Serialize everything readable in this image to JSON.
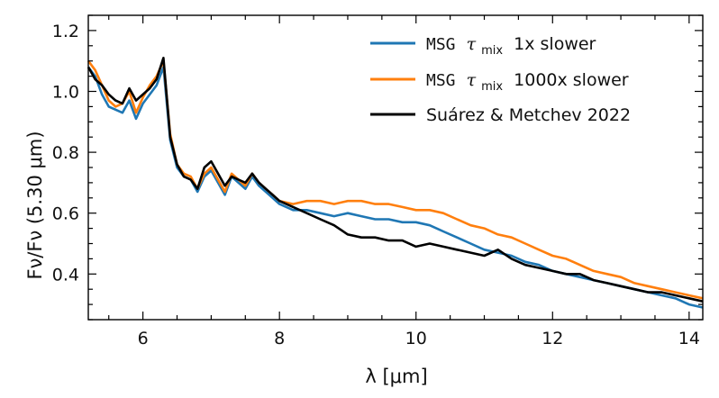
{
  "chart_data": {
    "type": "line",
    "xlabel": "λ [μm]",
    "ylabel": "Fν/Fν (5.30 μm)",
    "xlim": [
      5.2,
      14.2
    ],
    "ylim": [
      0.25,
      1.25
    ],
    "xticks": [
      6,
      8,
      10,
      12,
      14
    ],
    "yticks": [
      0.4,
      0.6,
      0.8,
      1.0,
      1.2
    ],
    "xtick_labels": [
      "6",
      "8",
      "10",
      "12",
      "14"
    ],
    "ytick_labels": [
      "0.4",
      "0.6",
      "0.8",
      "1.0",
      "1.2"
    ],
    "legend_position": "top-right",
    "legend": [
      {
        "prefix": "MSG",
        "symbol": "τ",
        "subscript": "mix",
        "suffix": "1x slower",
        "color": "#1f77b4"
      },
      {
        "prefix": "MSG",
        "symbol": "τ",
        "subscript": "mix",
        "suffix": "1000x slower",
        "color": "#ff7f0e"
      },
      {
        "label": "Suárez & Metchev 2022",
        "color": "#000000"
      }
    ],
    "series": [
      {
        "name": "MSG τmix 1x slower",
        "color": "#1f77b4",
        "x": [
          5.2,
          5.3,
          5.4,
          5.5,
          5.6,
          5.7,
          5.8,
          5.9,
          6.0,
          6.1,
          6.2,
          6.3,
          6.4,
          6.5,
          6.6,
          6.7,
          6.8,
          6.9,
          7.0,
          7.1,
          7.2,
          7.3,
          7.4,
          7.5,
          7.6,
          7.7,
          7.8,
          7.9,
          8.0,
          8.2,
          8.4,
          8.6,
          8.8,
          9.0,
          9.2,
          9.4,
          9.6,
          9.8,
          10.0,
          10.2,
          10.4,
          10.6,
          10.8,
          11.0,
          11.2,
          11.4,
          11.6,
          11.8,
          12.0,
          12.2,
          12.4,
          12.6,
          12.8,
          13.0,
          13.2,
          13.4,
          13.6,
          13.8,
          14.0,
          14.2
        ],
        "values": [
          1.08,
          1.05,
          0.99,
          0.95,
          0.94,
          0.93,
          0.97,
          0.91,
          0.96,
          0.99,
          1.02,
          1.08,
          0.84,
          0.75,
          0.72,
          0.71,
          0.67,
          0.72,
          0.74,
          0.7,
          0.66,
          0.72,
          0.7,
          0.68,
          0.72,
          0.69,
          0.67,
          0.65,
          0.63,
          0.61,
          0.61,
          0.6,
          0.59,
          0.6,
          0.59,
          0.58,
          0.58,
          0.57,
          0.57,
          0.56,
          0.54,
          0.52,
          0.5,
          0.48,
          0.47,
          0.46,
          0.44,
          0.43,
          0.41,
          0.4,
          0.39,
          0.38,
          0.37,
          0.36,
          0.35,
          0.34,
          0.33,
          0.32,
          0.3,
          0.29
        ]
      },
      {
        "name": "MSG τmix 1000x slower",
        "color": "#ff7f0e",
        "x": [
          5.2,
          5.3,
          5.4,
          5.5,
          5.6,
          5.7,
          5.8,
          5.9,
          6.0,
          6.1,
          6.2,
          6.3,
          6.4,
          6.5,
          6.6,
          6.7,
          6.8,
          6.9,
          7.0,
          7.1,
          7.2,
          7.3,
          7.4,
          7.5,
          7.6,
          7.7,
          7.8,
          7.9,
          8.0,
          8.2,
          8.4,
          8.6,
          8.8,
          9.0,
          9.2,
          9.4,
          9.6,
          9.8,
          10.0,
          10.2,
          10.4,
          10.6,
          10.8,
          11.0,
          11.2,
          11.4,
          11.6,
          11.8,
          12.0,
          12.2,
          12.4,
          12.6,
          12.8,
          13.0,
          13.2,
          13.4,
          13.6,
          13.8,
          14.0,
          14.2
        ],
        "values": [
          1.1,
          1.07,
          1.02,
          0.97,
          0.95,
          0.96,
          1.0,
          0.93,
          0.98,
          1.02,
          1.05,
          1.1,
          0.86,
          0.76,
          0.73,
          0.72,
          0.68,
          0.73,
          0.75,
          0.71,
          0.67,
          0.73,
          0.71,
          0.69,
          0.73,
          0.7,
          0.68,
          0.66,
          0.64,
          0.63,
          0.64,
          0.64,
          0.63,
          0.64,
          0.64,
          0.63,
          0.63,
          0.62,
          0.61,
          0.61,
          0.6,
          0.58,
          0.56,
          0.55,
          0.53,
          0.52,
          0.5,
          0.48,
          0.46,
          0.45,
          0.43,
          0.41,
          0.4,
          0.39,
          0.37,
          0.36,
          0.35,
          0.34,
          0.33,
          0.32
        ]
      },
      {
        "name": "Suárez & Metchev 2022",
        "color": "#000000",
        "x": [
          5.2,
          5.3,
          5.4,
          5.5,
          5.6,
          5.7,
          5.8,
          5.9,
          6.0,
          6.1,
          6.2,
          6.3,
          6.4,
          6.5,
          6.6,
          6.7,
          6.8,
          6.9,
          7.0,
          7.1,
          7.2,
          7.3,
          7.4,
          7.5,
          7.6,
          7.7,
          7.8,
          7.9,
          8.0,
          8.2,
          8.4,
          8.6,
          8.8,
          9.0,
          9.2,
          9.4,
          9.6,
          9.8,
          10.0,
          10.2,
          10.4,
          10.6,
          10.8,
          11.0,
          11.2,
          11.4,
          11.6,
          11.8,
          12.0,
          12.2,
          12.4,
          12.6,
          12.8,
          13.0,
          13.2,
          13.4,
          13.6,
          13.8,
          14.0,
          14.2
        ],
        "values": [
          1.08,
          1.04,
          1.02,
          0.99,
          0.97,
          0.96,
          1.01,
          0.97,
          0.99,
          1.01,
          1.04,
          1.11,
          0.85,
          0.76,
          0.72,
          0.71,
          0.68,
          0.75,
          0.77,
          0.73,
          0.69,
          0.72,
          0.71,
          0.7,
          0.73,
          0.7,
          0.68,
          0.66,
          0.64,
          0.62,
          0.6,
          0.58,
          0.56,
          0.53,
          0.52,
          0.52,
          0.51,
          0.51,
          0.49,
          0.5,
          0.49,
          0.48,
          0.47,
          0.46,
          0.48,
          0.45,
          0.43,
          0.42,
          0.41,
          0.4,
          0.4,
          0.38,
          0.37,
          0.36,
          0.35,
          0.34,
          0.34,
          0.33,
          0.32,
          0.31
        ]
      }
    ]
  }
}
